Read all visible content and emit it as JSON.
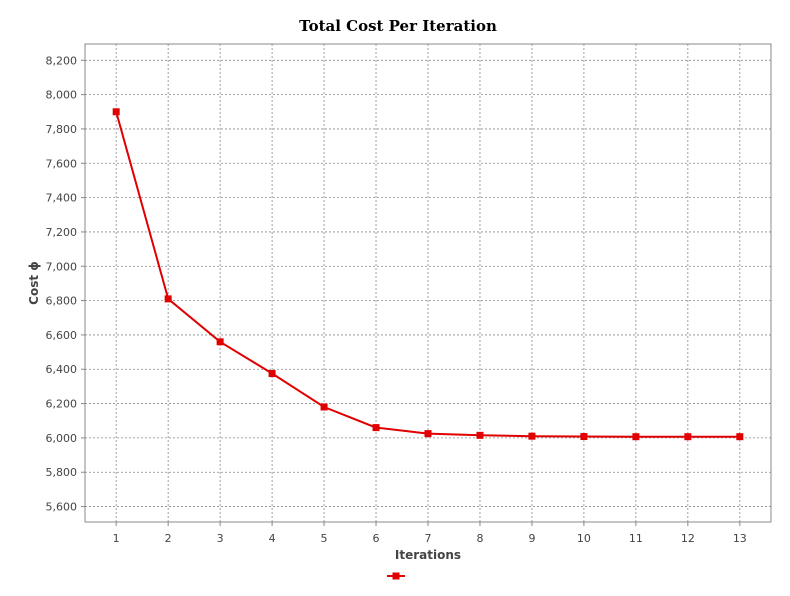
{
  "chart_data": {
    "type": "line",
    "title": "Total Cost Per Iteration",
    "xlabel": "Iterations",
    "ylabel": "Cost ϕ",
    "x": [
      1,
      2,
      3,
      4,
      5,
      6,
      7,
      8,
      9,
      10,
      11,
      12,
      13
    ],
    "x_tick_labels": [
      "1",
      "2",
      "3",
      "4",
      "5",
      "6",
      "7",
      "8",
      "9",
      "10",
      "11",
      "12",
      "13"
    ],
    "y_ticks": [
      5600,
      5800,
      6000,
      6200,
      6400,
      6600,
      6800,
      7000,
      7200,
      7400,
      7600,
      7800,
      8000,
      8200
    ],
    "y_tick_labels": [
      "5,600",
      "5,800",
      "6,000",
      "6,200",
      "6,400",
      "6,600",
      "6,800",
      "7,000",
      "7,200",
      "7,400",
      "7,600",
      "7,800",
      "8,000",
      "8,200"
    ],
    "xlim": [
      0.4,
      13.6
    ],
    "ylim": [
      5510,
      8295
    ],
    "grid": true,
    "legend_placement": "bottom-center",
    "series": [
      {
        "color": "#e00000",
        "marker": "square",
        "values": [
          7900,
          6810,
          6560,
          6375,
          6180,
          6060,
          6025,
          6015,
          6010,
          6008,
          6007,
          6007,
          6007
        ]
      }
    ]
  }
}
